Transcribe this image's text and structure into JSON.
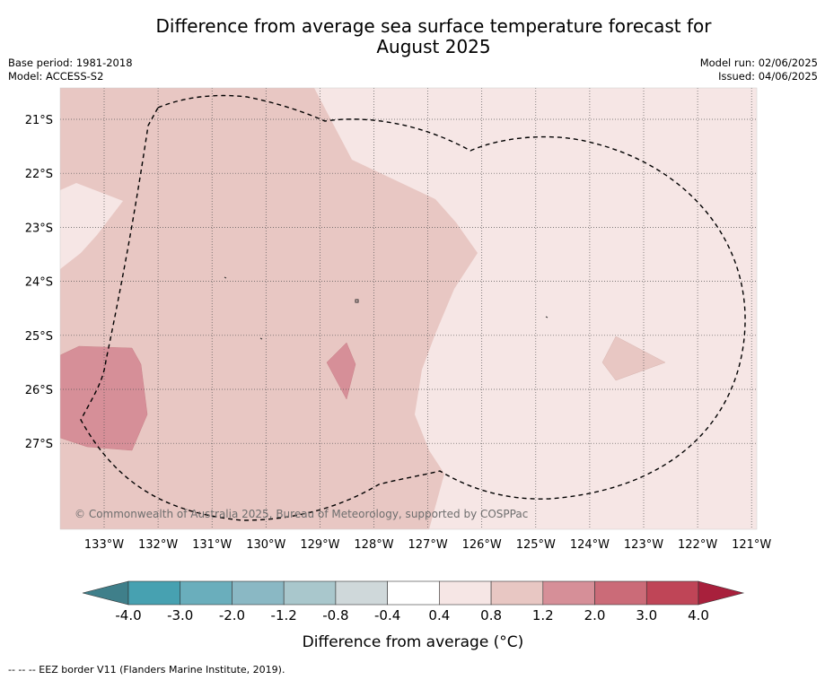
{
  "title_line1": "Difference from average sea surface temperature forecast for",
  "title_line2": "August 2025",
  "meta_left": {
    "base_period": "Base period: 1981-2018",
    "model": "Model: ACCESS-S2"
  },
  "meta_right": {
    "model_run": "Model run: 02/06/2025",
    "issued": "Issued: 04/06/2025"
  },
  "map": {
    "lon_labels": [
      "133°W",
      "132°W",
      "131°W",
      "130°W",
      "129°W",
      "128°W",
      "127°W",
      "126°W",
      "125°W",
      "124°W",
      "123°W",
      "122°W",
      "121°W"
    ],
    "lat_labels": [
      "21°S",
      "22°S",
      "23°S",
      "24°S",
      "25°S",
      "26°S",
      "27°S"
    ],
    "copyright": "© Commonwealth of Australia 2025, Bureau of Meteorology, supported by COSPPac"
  },
  "colorbar": {
    "label": "Difference from average (°C)",
    "ticks": [
      "-4.0",
      "-3.0",
      "-2.0",
      "-1.2",
      "-0.8",
      "-0.4",
      "0.4",
      "0.8",
      "1.2",
      "2.0",
      "3.0",
      "4.0"
    ],
    "colors": [
      "#3f7f8a",
      "#47a1b1",
      "#6aaebc",
      "#8ab8c4",
      "#a9c7cc",
      "#cfd8da",
      "#ffffff",
      "#f6e6e5",
      "#e8c7c3",
      "#d68f98",
      "#cb6b78",
      "#bf4557",
      "#a8203c"
    ]
  },
  "footer": "--  --  -- EEZ border V11 (Flanders Marine Institute, 2019)."
}
